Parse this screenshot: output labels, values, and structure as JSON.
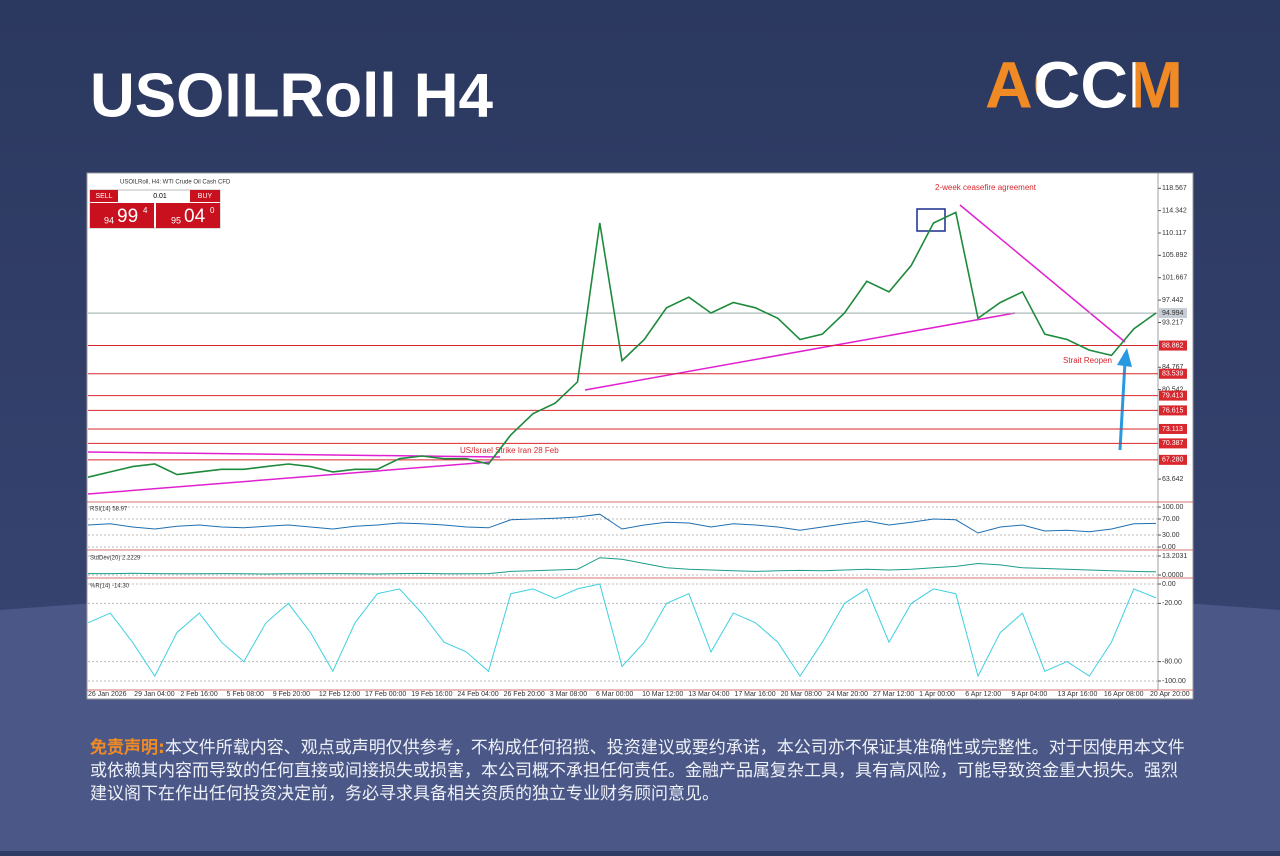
{
  "header": {
    "title": "USOILRoll H4",
    "logo": "ACCM"
  },
  "terminal": {
    "symbol_line": "USOILRoll, H4: WTI Crude Oil Cash CFD",
    "sell": "SELL",
    "lot": "0.01",
    "buy": "BUY",
    "sell_big": "94",
    "sell_main": "99",
    "sell_sup": "4",
    "buy_big": "95",
    "buy_main": "04",
    "buy_sup": "0"
  },
  "chart_data": [
    {
      "type": "line",
      "title": "USOILRoll H4",
      "color": "#1e8a3c",
      "values": [
        64,
        65,
        66,
        66.5,
        64.5,
        65,
        65.5,
        65.5,
        66,
        66.5,
        66,
        65,
        65.5,
        65.5,
        67.5,
        68,
        67.5,
        67.5,
        66.5,
        72,
        76,
        78,
        82,
        112,
        86,
        90,
        96,
        98,
        95,
        97,
        96,
        94,
        90,
        91,
        95,
        101,
        99,
        104,
        112,
        114,
        94,
        97,
        99,
        91,
        90,
        88,
        87,
        92,
        95
      ],
      "ylim": [
        59.7,
        120.5
      ],
      "yticks": [
        118.567,
        114.342,
        110.117,
        105.892,
        101.667,
        97.442,
        93.217,
        84.767,
        80.542,
        63.642
      ],
      "current_price": 94.994,
      "levels": [
        88.862,
        83.539,
        79.413,
        76.615,
        73.113,
        70.387,
        {
          "value": 67.28,
          "label": "67.280"
        }
      ],
      "level_color": "#d9272e",
      "x_labels": [
        "26 Jan 2026",
        "29 Jan 04:00",
        "2 Feb 16:00",
        "5 Feb 08:00",
        "9 Feb 20:00",
        "12 Feb 12:00",
        "17 Feb 00:00",
        "19 Feb 16:00",
        "24 Feb 04:00",
        "26 Feb 20:00",
        "3 Mar 08:00",
        "6 Mar 00:00",
        "10 Mar 12:00",
        "13 Mar 04:00",
        "17 Mar 16:00",
        "20 Mar 08:00",
        "24 Mar 20:00",
        "27 Mar 12:00",
        "1 Apr 00:00",
        "6 Apr 12:00",
        "9 Apr 04:00",
        "13 Apr 16:00",
        "16 Apr 08:00",
        "20 Apr 20:00"
      ],
      "annotations": [
        "2-week ceasefire agreement",
        "US/Israel Strike Iran 28 Feb",
        "Strait Reopen"
      ]
    },
    {
      "type": "line",
      "title": "RSI(14) 58.97",
      "color": "#1f6fb2",
      "values": [
        55,
        58,
        50,
        45,
        52,
        55,
        50,
        48,
        52,
        55,
        50,
        45,
        52,
        55,
        60,
        58,
        55,
        50,
        48,
        68,
        70,
        72,
        75,
        82,
        45,
        55,
        62,
        60,
        50,
        58,
        55,
        50,
        42,
        50,
        58,
        65,
        55,
        62,
        70,
        68,
        35,
        50,
        55,
        40,
        42,
        38,
        45,
        58,
        59
      ],
      "ylim": [
        0,
        100
      ],
      "yticks": [
        {
          "value": 100,
          "label": "100.00"
        },
        {
          "value": 70,
          "label": "70.00"
        },
        {
          "value": 30,
          "label": "30.00"
        },
        {
          "value": 0,
          "label": "0.00"
        }
      ]
    },
    {
      "type": "line",
      "title": "StdDev(20) 2.2229",
      "color": "#1a9e8a",
      "values": [
        1,
        1,
        1.2,
        1,
        0.8,
        0.9,
        1,
        0.8,
        0.7,
        0.8,
        0.9,
        1,
        0.8,
        0.7,
        1,
        1.1,
        0.9,
        0.8,
        1,
        2.5,
        3,
        3.5,
        4,
        12,
        11,
        8,
        5,
        4,
        3.5,
        3,
        2.5,
        3,
        3.2,
        3,
        3.5,
        4,
        3.5,
        4,
        5,
        6,
        8,
        7,
        5,
        4.5,
        4,
        3.5,
        3,
        2.5,
        2.2
      ],
      "ylim": [
        0,
        13.2031
      ],
      "yticks": [
        13.2031,
        {
          "value": 0,
          "label": "0.0000"
        }
      ]
    },
    {
      "type": "line",
      "title": "%R(14) -14.30",
      "color": "#3fd0e0",
      "values": [
        -40,
        -30,
        -60,
        -95,
        -50,
        -30,
        -60,
        -80,
        -40,
        -20,
        -50,
        -90,
        -40,
        -10,
        -5,
        -30,
        -60,
        -70,
        -90,
        -10,
        -5,
        -15,
        -5,
        0,
        -85,
        -60,
        -20,
        -10,
        -70,
        -30,
        -40,
        -60,
        -95,
        -60,
        -20,
        -5,
        -60,
        -20,
        -5,
        -10,
        -95,
        -50,
        -30,
        -90,
        -80,
        -95,
        -60,
        -5,
        -14.3
      ],
      "ylim": [
        -100,
        0
      ],
      "yticks": [
        {
          "value": 0,
          "label": "0.00"
        },
        {
          "value": -20,
          "label": "-20.00"
        },
        {
          "value": -80,
          "label": "-80.00"
        },
        {
          "value": -100,
          "label": "-100.00"
        }
      ]
    }
  ],
  "disclaimer": {
    "label": "免责声明:",
    "text": "本文件所载内容、观点或声明仅供参考，不构成任何招揽、投资建议或要约承诺，本公司亦不保证其准确性或完整性。对于因使用本文件或依赖其内容而导致的任何直接或间接损失或损害，本公司概不承担任何责任。金融产品属复杂工具，具有高风险，可能导致资金重大损失。强烈建议阁下在作出任何投资决定前，务必寻求具备相关资质的独立专业财务顾问意见。"
  }
}
